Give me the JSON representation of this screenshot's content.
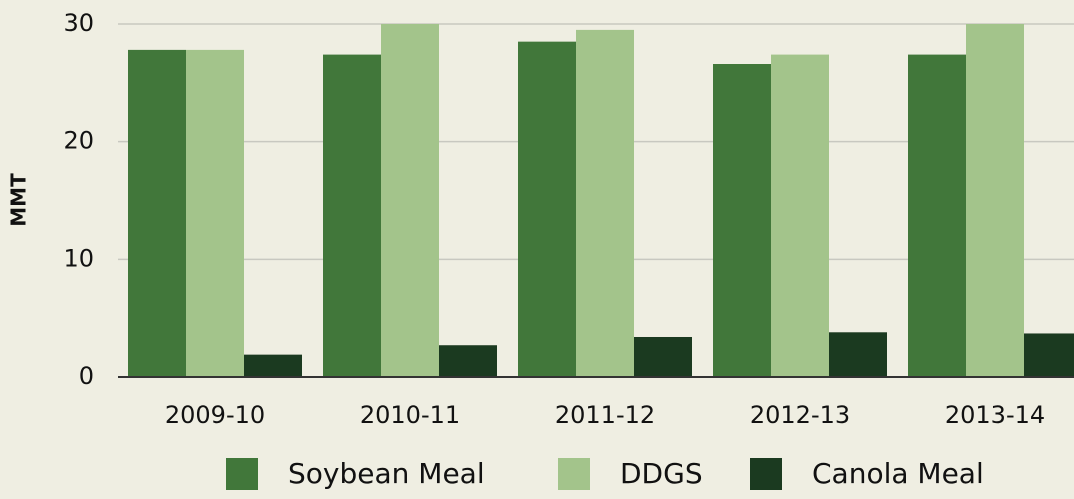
{
  "chart_data": {
    "type": "bar",
    "y_label": "MMT",
    "categories": [
      "2009-10",
      "2010-11",
      "2011-12",
      "2012-13",
      "2013-14"
    ],
    "series": [
      {
        "name": "Soybean Meal",
        "color": "#41773a",
        "values": [
          27.8,
          27.4,
          28.5,
          26.6,
          27.4
        ]
      },
      {
        "name": "DDGS",
        "color": "#a3c48b",
        "values": [
          27.8,
          30.0,
          29.5,
          27.4,
          30.0
        ]
      },
      {
        "name": "Canola Meal",
        "color": "#1b3a20",
        "values": [
          1.9,
          2.7,
          3.4,
          3.8,
          3.7
        ]
      }
    ],
    "ylim": [
      0,
      30
    ],
    "yticks": [
      0,
      10,
      20,
      30
    ],
    "grid": true,
    "legend": "bottom"
  }
}
